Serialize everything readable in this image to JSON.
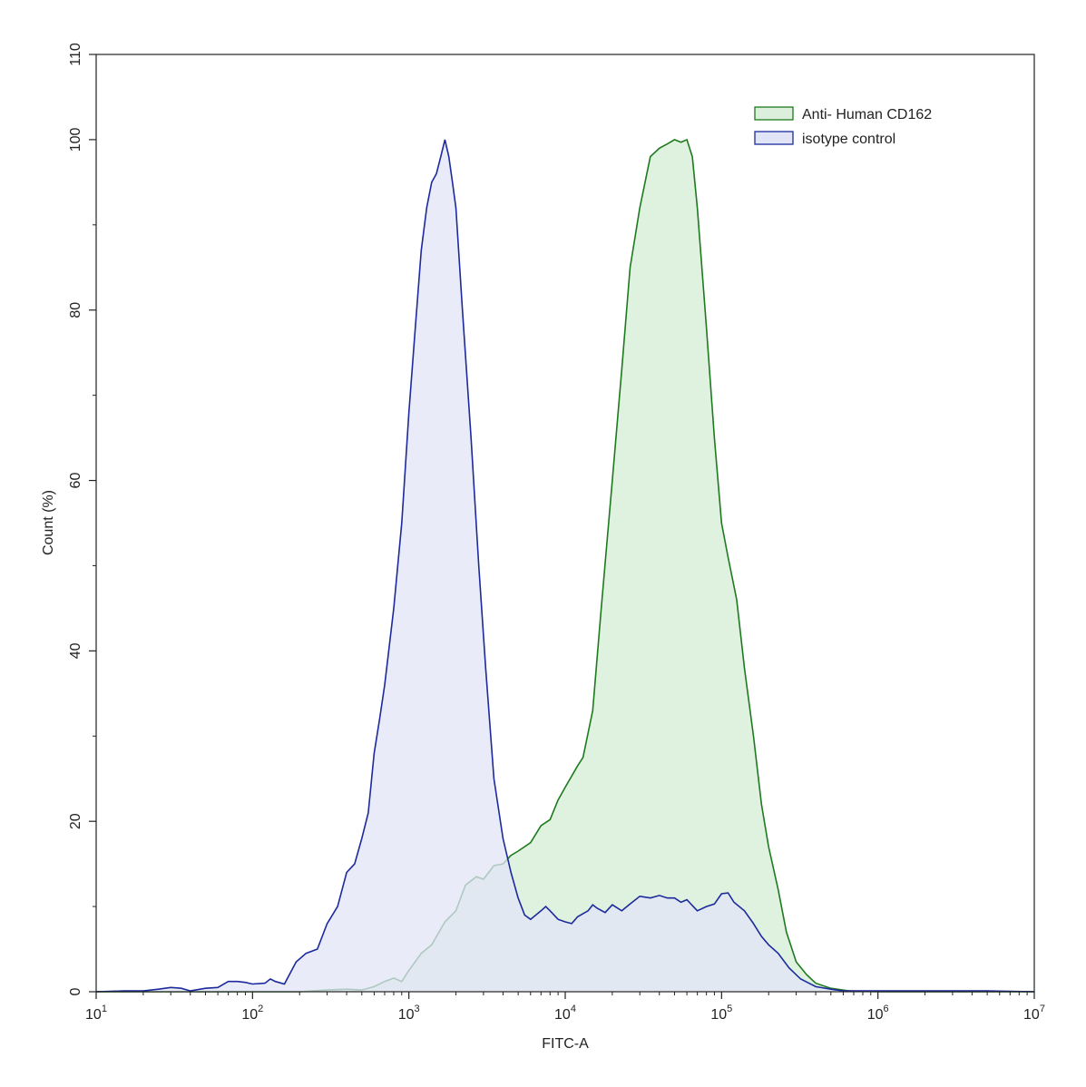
{
  "chart_data": {
    "type": "area",
    "title": "",
    "xlabel": "FITC-A",
    "ylabel": "Count (%)",
    "x_scale": "log",
    "xlim": [
      10,
      10000000
    ],
    "ylim": [
      0,
      110
    ],
    "grid": false,
    "legend_position": "top-right",
    "x_ticks": [
      {
        "value": 10,
        "base": "10",
        "exp": "1"
      },
      {
        "value": 100,
        "base": "10",
        "exp": "2"
      },
      {
        "value": 1000,
        "base": "10",
        "exp": "3"
      },
      {
        "value": 10000,
        "base": "10",
        "exp": "4"
      },
      {
        "value": 100000,
        "base": "10",
        "exp": "5"
      },
      {
        "value": 1000000,
        "base": "10",
        "exp": "6"
      },
      {
        "value": 10000000,
        "base": "10",
        "exp": "7"
      }
    ],
    "y_ticks": [
      {
        "value": 0,
        "label": "0"
      },
      {
        "value": 20,
        "label": "20"
      },
      {
        "value": 40,
        "label": "40"
      },
      {
        "value": 60,
        "label": "60"
      },
      {
        "value": 80,
        "label": "80"
      },
      {
        "value": 100,
        "label": "100"
      },
      {
        "value": 110,
        "label": "110"
      }
    ],
    "series": [
      {
        "name": "Anti- Human CD162",
        "stroke": "#1e7a1e",
        "fill": "#dcefdc",
        "points": [
          [
            10,
            0
          ],
          [
            100,
            0
          ],
          [
            200,
            0
          ],
          [
            300,
            0.2
          ],
          [
            400,
            0.3
          ],
          [
            500,
            0.2
          ],
          [
            600,
            0.6
          ],
          [
            700,
            1.2
          ],
          [
            800,
            1.6
          ],
          [
            900,
            1.2
          ],
          [
            1000,
            2.5
          ],
          [
            1200,
            4.5
          ],
          [
            1400,
            5.5
          ],
          [
            1700,
            8.2
          ],
          [
            2000,
            9.5
          ],
          [
            2300,
            12.5
          ],
          [
            2700,
            13.5
          ],
          [
            3000,
            13.2
          ],
          [
            3500,
            14.8
          ],
          [
            4000,
            15.0
          ],
          [
            4500,
            16.0
          ],
          [
            5000,
            16.5
          ],
          [
            6000,
            17.5
          ],
          [
            7000,
            19.5
          ],
          [
            8000,
            20.2
          ],
          [
            9000,
            22.5
          ],
          [
            10000,
            24
          ],
          [
            12000,
            26.5
          ],
          [
            13000,
            27.5
          ],
          [
            15000,
            33
          ],
          [
            17000,
            45
          ],
          [
            20000,
            60
          ],
          [
            23000,
            73
          ],
          [
            26000,
            85
          ],
          [
            30000,
            92
          ],
          [
            35000,
            98
          ],
          [
            40000,
            99
          ],
          [
            45000,
            99.5
          ],
          [
            50000,
            100
          ],
          [
            55000,
            99.7
          ],
          [
            60000,
            100
          ],
          [
            65000,
            98
          ],
          [
            70000,
            92
          ],
          [
            80000,
            78
          ],
          [
            90000,
            65
          ],
          [
            100000,
            55
          ],
          [
            110000,
            51
          ],
          [
            125000,
            46
          ],
          [
            140000,
            38
          ],
          [
            160000,
            30
          ],
          [
            180000,
            22
          ],
          [
            200000,
            17
          ],
          [
            230000,
            12
          ],
          [
            260000,
            7
          ],
          [
            300000,
            3.5
          ],
          [
            350000,
            2
          ],
          [
            400000,
            1
          ],
          [
            500000,
            0.4
          ],
          [
            650000,
            0.1
          ],
          [
            1000000,
            0
          ],
          [
            10000000,
            0
          ]
        ]
      },
      {
        "name": "isotype control",
        "stroke": "#1c2a9c",
        "fill": "#e2e4f7",
        "points": [
          [
            10,
            0
          ],
          [
            15,
            0.1
          ],
          [
            20,
            0.1
          ],
          [
            25,
            0.3
          ],
          [
            30,
            0.5
          ],
          [
            35,
            0.4
          ],
          [
            40,
            0.1
          ],
          [
            50,
            0.4
          ],
          [
            60,
            0.5
          ],
          [
            70,
            1.2
          ],
          [
            80,
            1.2
          ],
          [
            90,
            1.1
          ],
          [
            100,
            0.9
          ],
          [
            120,
            1.0
          ],
          [
            130,
            1.5
          ],
          [
            140,
            1.2
          ],
          [
            160,
            0.9
          ],
          [
            190,
            3.5
          ],
          [
            220,
            4.5
          ],
          [
            260,
            5.0
          ],
          [
            300,
            8.0
          ],
          [
            350,
            10.0
          ],
          [
            400,
            14
          ],
          [
            450,
            15
          ],
          [
            500,
            18
          ],
          [
            550,
            21
          ],
          [
            600,
            28
          ],
          [
            650,
            32
          ],
          [
            700,
            36
          ],
          [
            800,
            45
          ],
          [
            900,
            55
          ],
          [
            1000,
            68
          ],
          [
            1100,
            78
          ],
          [
            1200,
            87
          ],
          [
            1300,
            92
          ],
          [
            1400,
            95
          ],
          [
            1500,
            96
          ],
          [
            1600,
            98
          ],
          [
            1700,
            100
          ],
          [
            1800,
            98
          ],
          [
            1900,
            95
          ],
          [
            2000,
            92
          ],
          [
            2200,
            80
          ],
          [
            2500,
            65
          ],
          [
            2800,
            50
          ],
          [
            3100,
            38
          ],
          [
            3500,
            25
          ],
          [
            4000,
            18
          ],
          [
            4500,
            14
          ],
          [
            5000,
            11
          ],
          [
            5500,
            9
          ],
          [
            6000,
            8.5
          ],
          [
            7000,
            9.5
          ],
          [
            7500,
            10
          ],
          [
            8000,
            9.5
          ],
          [
            9000,
            8.5
          ],
          [
            10000,
            8.2
          ],
          [
            11000,
            8.0
          ],
          [
            12000,
            8.8
          ],
          [
            14000,
            9.5
          ],
          [
            15000,
            10.2
          ],
          [
            16000,
            9.8
          ],
          [
            18000,
            9.3
          ],
          [
            20000,
            10.2
          ],
          [
            23000,
            9.5
          ],
          [
            26000,
            10.3
          ],
          [
            30000,
            11.2
          ],
          [
            35000,
            11
          ],
          [
            40000,
            11.3
          ],
          [
            45000,
            11
          ],
          [
            50000,
            11
          ],
          [
            55000,
            10.5
          ],
          [
            60000,
            10.8
          ],
          [
            70000,
            9.5
          ],
          [
            80000,
            10
          ],
          [
            90000,
            10.3
          ],
          [
            100000,
            11.5
          ],
          [
            110000,
            11.6
          ],
          [
            120000,
            10.5
          ],
          [
            140000,
            9.5
          ],
          [
            160000,
            8
          ],
          [
            180000,
            6.5
          ],
          [
            200000,
            5.5
          ],
          [
            230000,
            4.5
          ],
          [
            270000,
            2.8
          ],
          [
            320000,
            1.5
          ],
          [
            400000,
            0.6
          ],
          [
            500000,
            0.3
          ],
          [
            600000,
            0.1
          ],
          [
            1000000,
            0.1
          ],
          [
            5000000,
            0.1
          ],
          [
            10000000,
            0
          ]
        ]
      }
    ]
  }
}
